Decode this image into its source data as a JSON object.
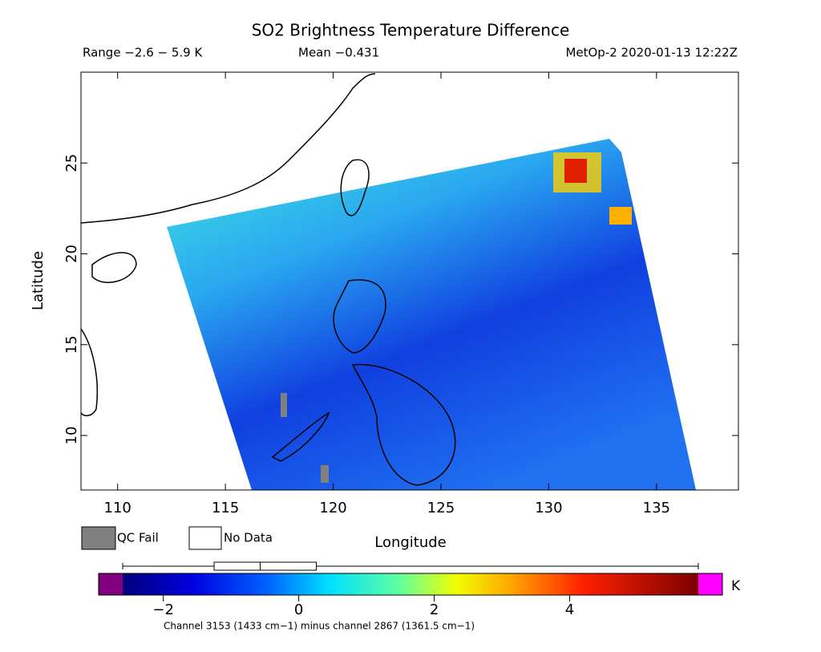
{
  "header": {
    "title": "SO2 Brightness Temperature Difference",
    "range": "Range −2.6 − 5.9 K",
    "mean": "Mean −0.431",
    "source": "MetOp-2 2020-01-13 12:22Z"
  },
  "map": {
    "xlabel": "Longitude",
    "ylabel": "Latitude",
    "xlim": [
      108.3,
      138.8
    ],
    "ylim": [
      7,
      30
    ],
    "xticks": [
      110,
      115,
      120,
      125,
      130,
      135
    ],
    "yticks": [
      10,
      15,
      20,
      25
    ]
  },
  "legend": {
    "items": [
      "QC Fail",
      "No Data"
    ]
  },
  "colorbar": {
    "lim": [
      -2.6,
      5.9
    ],
    "ticks": [
      {
        "value": -2,
        "label": "−2"
      },
      0,
      2,
      4
    ],
    "unit": "K",
    "box": {
      "min": -2.6,
      "q1": -1.25,
      "median": -0.57,
      "q3": 0.26,
      "max": 5.9
    },
    "note": "Channel 3153 (1433 cm−1) minus channel 2867 (1361.5 cm−1)"
  }
}
